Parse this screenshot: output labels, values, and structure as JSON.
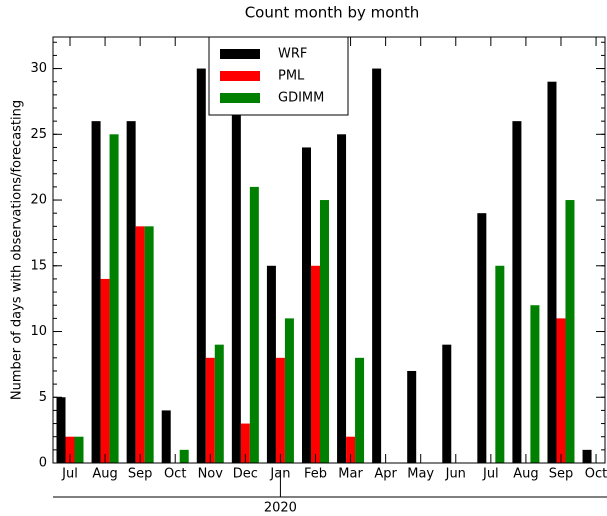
{
  "chart_data": {
    "type": "bar",
    "title": "Count month by month",
    "y_label": "Number of days with observations/forecasting",
    "categories": [
      "Jul",
      "Aug",
      "Sep",
      "Oct",
      "Nov",
      "Dec",
      "Jan",
      "Feb",
      "Mar",
      "Apr",
      "May",
      "Jun",
      "Jul",
      "Aug",
      "Sep",
      "Oct"
    ],
    "year_label": "2020",
    "series": [
      {
        "name": "WRF",
        "color": "#000000",
        "values": [
          5,
          26,
          26,
          4,
          30,
          27,
          15,
          24,
          25,
          30,
          7,
          9,
          19,
          26,
          29,
          1
        ]
      },
      {
        "name": "PML",
        "color": "#ff0000",
        "values": [
          2,
          14,
          18,
          0,
          8,
          3,
          8,
          15,
          2,
          0,
          0,
          0,
          0,
          0,
          11,
          0
        ]
      },
      {
        "name": "GDIMM",
        "color": "#008000",
        "values": [
          2,
          25,
          18,
          1,
          9,
          21,
          11,
          20,
          8,
          0,
          0,
          0,
          15,
          12,
          20,
          0
        ]
      }
    ],
    "ylim": [
      0,
      32.4
    ],
    "yticks": [
      0,
      5,
      10,
      15,
      20,
      25,
      30
    ],
    "legend": "upper-center"
  }
}
